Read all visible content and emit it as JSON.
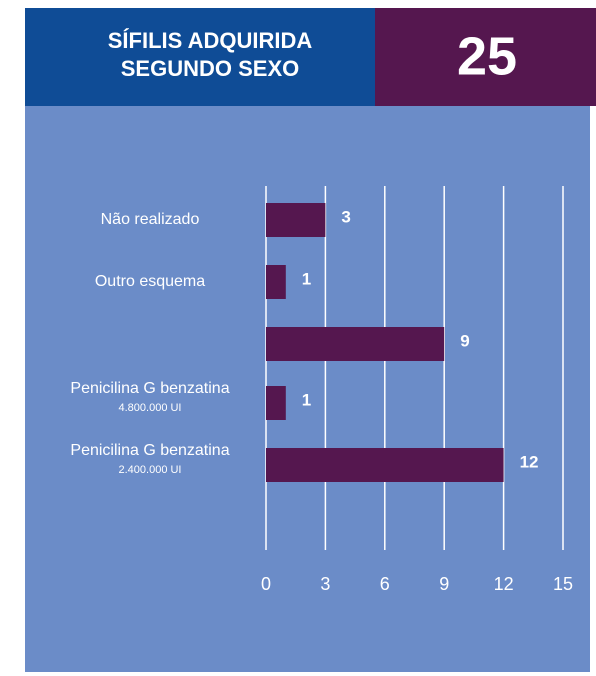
{
  "title_lines": [
    "SÍFILIS ADQUIRIDA",
    "SEGUNDO SEXO"
  ],
  "badge": "25",
  "chart_data": {
    "type": "barh",
    "categories": [
      "Não realizado",
      "Outro esquema",
      null,
      "Penicilina G benzatina",
      "Penicilina G benzatina"
    ],
    "category_notes": [
      null,
      null,
      null,
      "4.800.000 UI",
      "2.400.000 UI"
    ],
    "values": [
      3,
      1,
      9,
      1,
      12
    ],
    "color": "#55174f",
    "xlim": [
      0,
      15
    ],
    "xticks": [
      0,
      3,
      6,
      9,
      12,
      15
    ],
    "grid": true
  }
}
